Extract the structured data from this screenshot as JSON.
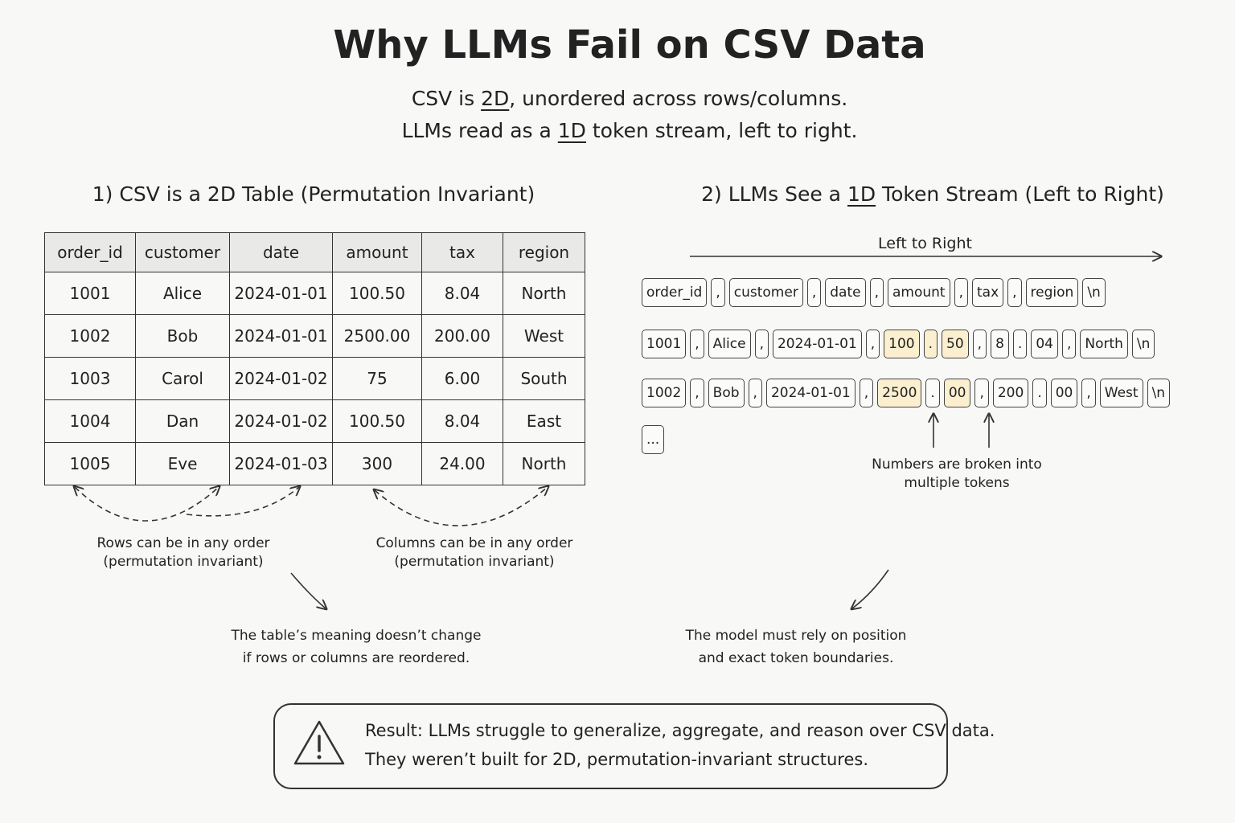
{
  "header": {
    "title": "Why LLMs Fail on CSV Data",
    "subtitle": [
      [
        "CSV is ",
        "2D",
        ", unordered across rows/columns."
      ],
      [
        "LLMs read as a ",
        "1D",
        " token stream, left to right."
      ]
    ]
  },
  "left_panel": {
    "heading": "1) CSV is a 2D Table (Permutation Invariant)",
    "table": {
      "columns": [
        "order_id",
        "customer",
        "date",
        "amount",
        "tax",
        "region"
      ],
      "rows": [
        [
          "1001",
          "Alice",
          "2024-01-01",
          "100.50",
          "8.04",
          "North"
        ],
        [
          "1002",
          "Bob",
          "2024-01-01",
          "2500.00",
          "200.00",
          "West"
        ],
        [
          "1003",
          "Carol",
          "2024-01-02",
          "75",
          "6.00",
          "South"
        ],
        [
          "1004",
          "Dan",
          "2024-01-02",
          "100.50",
          "8.04",
          "East"
        ],
        [
          "1005",
          "Eve",
          "2024-01-03",
          "300",
          "24.00",
          "North"
        ]
      ]
    },
    "rows_note": [
      "Rows can be in any order",
      "(permutation invariant)"
    ],
    "columns_note": [
      "Columns can be in any order",
      "(permutation invariant)"
    ],
    "conclusion": [
      "The table’s meaning doesn’t change",
      "if rows or columns are reordered."
    ]
  },
  "right_panel": {
    "heading": [
      "2) LLMs See a ",
      "1D",
      " Token Stream (Left to Right)"
    ],
    "arrow_label": "Left to Right",
    "token_rows": [
      [
        "order_id",
        ",",
        "customer",
        ",",
        "date",
        ",",
        "amount",
        ",",
        "tax",
        ",",
        "region",
        "\\n"
      ],
      [
        "1001",
        ",",
        "Alice",
        ",",
        "2024-01-01",
        ",",
        {
          "text": "100",
          "highlight": true
        },
        {
          "text": ".",
          "highlight": true
        },
        {
          "text": "50",
          "highlight": true
        },
        ",",
        "8",
        ".",
        "04",
        ",",
        "North",
        "\\n"
      ],
      [
        "1002",
        ",",
        "Bob",
        ",",
        "2024-01-01",
        ",",
        {
          "text": "2500",
          "highlight": true
        },
        ".",
        {
          "text": "00",
          "highlight": true
        },
        ",",
        "200",
        ".",
        "00",
        ",",
        "West",
        "\\n"
      ],
      [
        "..."
      ]
    ],
    "numbers_note": [
      "Numbers are broken into",
      "multiple tokens"
    ],
    "conclusion": [
      "The model must rely on position",
      "and exact token boundaries."
    ]
  },
  "result": [
    "Result: LLMs struggle to generalize, aggregate, and reason over CSV data.",
    "They weren’t built for 2D, permutation-invariant structures."
  ]
}
